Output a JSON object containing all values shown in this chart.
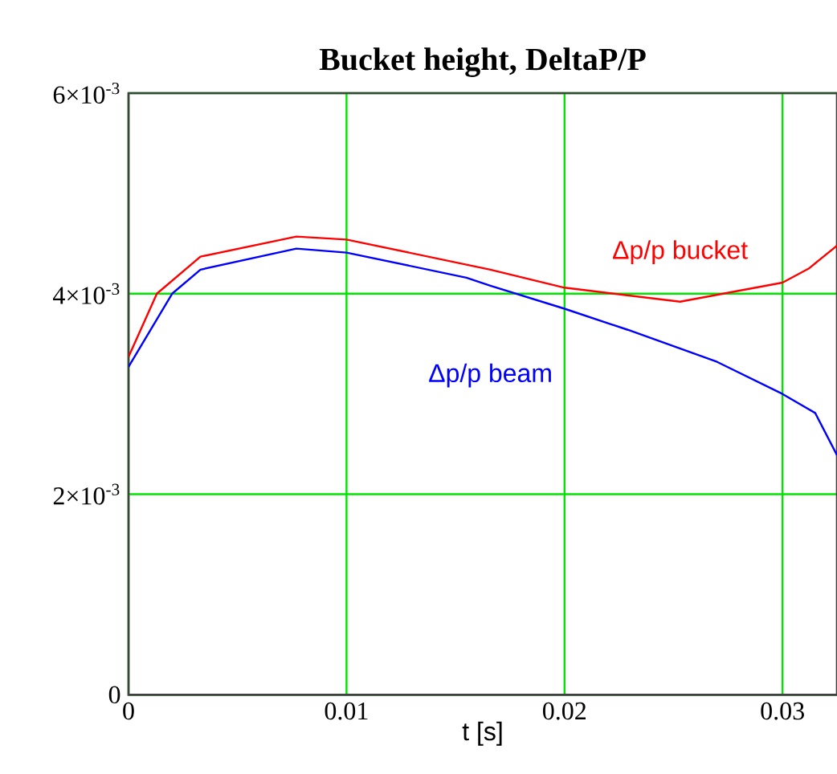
{
  "chart_data": {
    "type": "line",
    "title": "Bucket height, DeltaP/P",
    "xlabel": "t [s]",
    "xlim": [
      0,
      0.0325
    ],
    "ylim": [
      0,
      0.006
    ],
    "xticks": [
      0,
      0.01,
      0.02,
      0.03
    ],
    "yticks": [
      {
        "value": 0,
        "label": "0"
      },
      {
        "value": 0.002,
        "label": "2×10$^{-3}$"
      },
      {
        "value": 0.004,
        "label": "4×10$^{-3}$"
      },
      {
        "value": 0.006,
        "label": "6×10$^{-3}$"
      }
    ],
    "grid": true,
    "legend": false,
    "marker": "none",
    "line_style": "solid",
    "series": [
      {
        "name": "Δp/p bucket",
        "color": "#ff0000",
        "x": [
          0,
          0.0013,
          0.0033,
          0.0077,
          0.01,
          0.0155,
          0.0166,
          0.02,
          0.0253,
          0.03,
          0.0312,
          0.0325
        ],
        "values": [
          0.00337,
          0.004,
          0.00437,
          0.00457,
          0.00454,
          0.00429,
          0.00424,
          0.00406,
          0.00392,
          0.00411,
          0.00425,
          0.00448
        ]
      },
      {
        "name": "Δp/p beam",
        "color": "#0000ff",
        "x": [
          0,
          0.002,
          0.0033,
          0.0077,
          0.01,
          0.0155,
          0.0166,
          0.02,
          0.0229,
          0.027,
          0.03,
          0.0315,
          0.0325
        ],
        "values": [
          0.00327,
          0.004,
          0.00424,
          0.00445,
          0.00441,
          0.00416,
          0.00408,
          0.00385,
          0.00364,
          0.00332,
          0.003,
          0.00281,
          0.00239
        ]
      }
    ]
  }
}
